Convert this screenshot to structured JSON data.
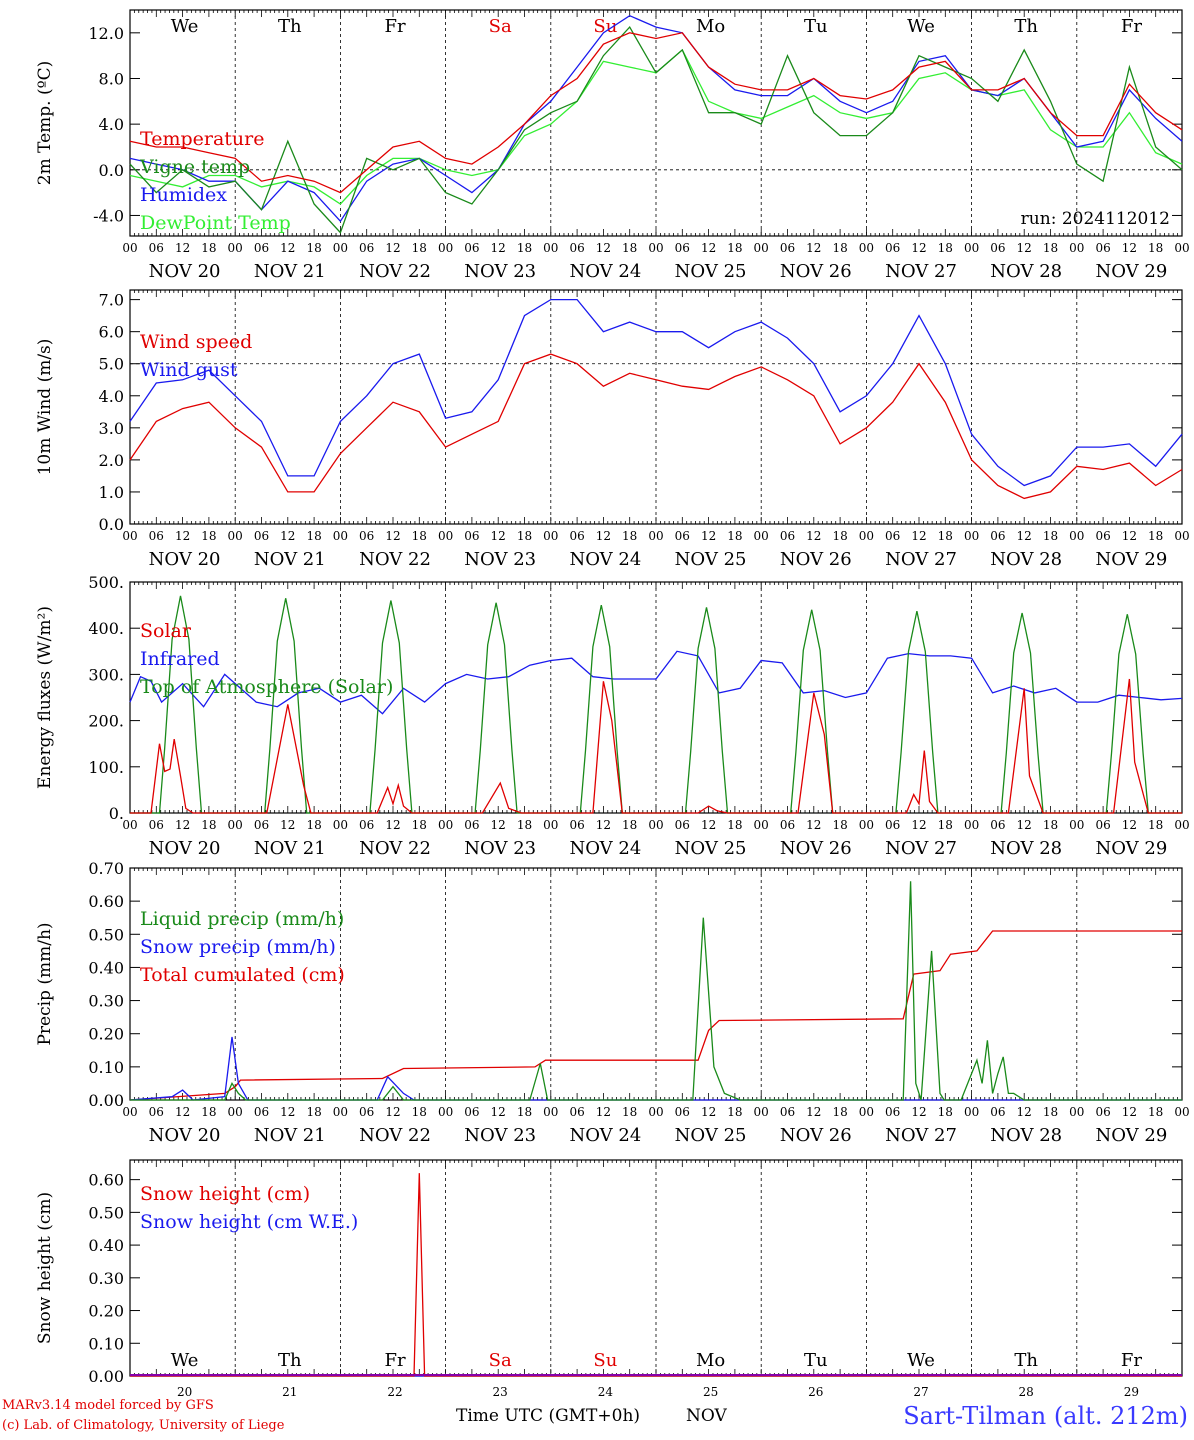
{
  "footer": {
    "model": "MARv3.14 model forced by GFS",
    "copyright": "(c) Lab. of Climatology, University of Liege",
    "time_axis": "Time UTC (GMT+0h)",
    "month": "NOV",
    "site": "Sart-Tilman (alt. 212m)"
  },
  "colors": {
    "red": "#e00000",
    "green": "#1a8a1a",
    "blue": "#1a1aee",
    "lightgreen": "#33ee33",
    "weekend": "#e00000",
    "purple": "#8800aa"
  },
  "x_axis": {
    "hour_ticks": [
      "00",
      "06",
      "12",
      "18"
    ],
    "end_tick": "00",
    "days": [
      "NOV 20",
      "NOV 21",
      "NOV 22",
      "NOV 23",
      "NOV 24",
      "NOV 25",
      "NOV 26",
      "NOV 27",
      "NOV 28",
      "NOV 29"
    ],
    "weekdays": [
      "We",
      "Th",
      "Fr",
      "Sa",
      "Su",
      "Mo",
      "Tu",
      "We",
      "Th",
      "Fr"
    ],
    "weekend_flags": [
      false,
      false,
      false,
      true,
      true,
      false,
      false,
      false,
      false,
      false
    ],
    "day_numbers": [
      "20",
      "21",
      "22",
      "23",
      "24",
      "25",
      "26",
      "27",
      "28",
      "29"
    ]
  },
  "chart_data": [
    {
      "type": "line",
      "ylabel": "2m Temp. (ºC)",
      "ylim": [
        -5.8,
        14.0
      ],
      "yticks": [
        -4.0,
        0.0,
        4.0,
        8.0,
        12.0
      ],
      "ytick_labels": [
        "-4.0",
        "0.0",
        "4.0",
        "8.0",
        "12.0"
      ],
      "ref_line": 0.0,
      "annotation": "run: 2024112012",
      "x_days": [
        0,
        0.25,
        0.5,
        0.75,
        1,
        1.25,
        1.5,
        1.75,
        2,
        2.25,
        2.5,
        2.75,
        3,
        3.25,
        3.5,
        3.75,
        4,
        4.25,
        4.5,
        4.75,
        5,
        5.25,
        5.5,
        5.75,
        6,
        6.25,
        6.5,
        6.75,
        7,
        7.25,
        7.5,
        7.75,
        8,
        8.25,
        8.5,
        8.75,
        9,
        9.25,
        9.5,
        9.75,
        10
      ],
      "series": [
        {
          "name": "Temperature",
          "color": "red",
          "values": [
            2.5,
            2.0,
            2.0,
            1.5,
            1.0,
            -1.0,
            -0.5,
            -1.0,
            -2.0,
            0.0,
            2.0,
            2.5,
            1.0,
            0.5,
            2.0,
            4.0,
            6.5,
            8.0,
            11.0,
            12.0,
            11.5,
            12.0,
            9.0,
            7.5,
            7.0,
            7.0,
            8.0,
            6.5,
            6.2,
            7.0,
            9.0,
            9.5,
            7.0,
            7.0,
            8.0,
            5.0,
            3.0,
            3.0,
            7.5,
            5.0,
            3.5
          ]
        },
        {
          "name": "Vigne temp",
          "color": "green",
          "values": [
            0.5,
            -2.0,
            0.0,
            -1.5,
            -1.0,
            -3.5,
            2.5,
            -3.0,
            -5.5,
            1.0,
            0.0,
            1.0,
            -2.0,
            -3.0,
            0.0,
            3.5,
            5.0,
            6.0,
            10.0,
            12.5,
            8.5,
            10.5,
            5.0,
            5.0,
            4.0,
            10.0,
            5.0,
            3.0,
            3.0,
            5.0,
            10.0,
            9.0,
            8.0,
            6.0,
            10.5,
            6.0,
            0.5,
            -1.0,
            9.0,
            2.0,
            0.0
          ]
        },
        {
          "name": "Humidex",
          "color": "blue",
          "values": [
            1.0,
            0.5,
            0.0,
            -1.0,
            -1.0,
            -3.5,
            -1.0,
            -2.0,
            -4.5,
            -1.0,
            0.5,
            1.0,
            -0.5,
            -2.0,
            0.0,
            4.0,
            6.0,
            9.0,
            12.0,
            13.5,
            12.5,
            12.0,
            9.0,
            7.0,
            6.5,
            6.5,
            8.0,
            6.0,
            5.0,
            6.0,
            9.5,
            10.0,
            7.0,
            6.5,
            8.0,
            5.0,
            2.0,
            2.5,
            7.0,
            4.5,
            2.5
          ]
        },
        {
          "name": "DewPoint Temp",
          "color": "lightgreen",
          "values": [
            -0.5,
            -1.0,
            -1.5,
            -0.5,
            -0.5,
            -1.5,
            -1.0,
            -1.5,
            -3.0,
            -0.5,
            1.0,
            1.0,
            0.0,
            -0.5,
            0.0,
            3.0,
            4.0,
            6.0,
            9.5,
            9.0,
            8.5,
            10.5,
            6.0,
            5.0,
            4.5,
            5.5,
            6.5,
            5.0,
            4.5,
            5.0,
            8.0,
            8.5,
            7.0,
            6.5,
            7.0,
            3.5,
            2.0,
            2.0,
            5.0,
            1.5,
            0.5
          ]
        }
      ]
    },
    {
      "type": "line",
      "ylabel": "10m Wind (m/s)",
      "ylim": [
        0.0,
        7.3
      ],
      "yticks": [
        0.0,
        1.0,
        2.0,
        3.0,
        4.0,
        5.0,
        6.0,
        7.0
      ],
      "ytick_labels": [
        "0.0",
        "1.0",
        "2.0",
        "3.0",
        "4.0",
        "5.0",
        "6.0",
        "7.0"
      ],
      "ref_line": 5.0,
      "x_days": [
        0,
        0.25,
        0.5,
        0.75,
        1,
        1.25,
        1.5,
        1.75,
        2,
        2.25,
        2.5,
        2.75,
        3,
        3.25,
        3.5,
        3.75,
        4,
        4.25,
        4.5,
        4.75,
        5,
        5.25,
        5.5,
        5.75,
        6,
        6.25,
        6.5,
        6.75,
        7,
        7.25,
        7.5,
        7.75,
        8,
        8.25,
        8.5,
        8.75,
        9,
        9.25,
        9.5,
        9.75,
        10
      ],
      "series": [
        {
          "name": "Wind speed",
          "color": "red",
          "values": [
            2.0,
            3.2,
            3.6,
            3.8,
            3.0,
            2.4,
            1.0,
            1.0,
            2.2,
            3.0,
            3.8,
            3.5,
            2.4,
            2.8,
            3.2,
            5.0,
            5.3,
            5.0,
            4.3,
            4.7,
            4.5,
            4.3,
            4.2,
            4.6,
            4.9,
            4.5,
            4.0,
            2.5,
            3.0,
            3.8,
            5.0,
            3.8,
            2.0,
            1.2,
            0.8,
            1.0,
            1.8,
            1.7,
            1.9,
            1.2,
            1.7
          ]
        },
        {
          "name": "Wind gust",
          "color": "blue",
          "values": [
            3.2,
            4.4,
            4.5,
            4.8,
            4.0,
            3.2,
            1.5,
            1.5,
            3.2,
            4.0,
            5.0,
            5.3,
            3.3,
            3.5,
            4.5,
            6.5,
            7.0,
            7.0,
            6.0,
            6.3,
            6.0,
            6.0,
            5.5,
            6.0,
            6.3,
            5.8,
            5.0,
            3.5,
            4.0,
            5.0,
            6.5,
            5.0,
            2.8,
            1.8,
            1.2,
            1.5,
            2.4,
            2.4,
            2.5,
            1.8,
            2.8
          ]
        }
      ]
    },
    {
      "type": "line",
      "ylabel": "Energy fluxes (W/m²)",
      "ylim": [
        0,
        500
      ],
      "yticks": [
        0,
        100,
        200,
        300,
        400,
        500
      ],
      "ytick_labels": [
        "0.",
        "100.",
        "200.",
        "300.",
        "400.",
        "500."
      ],
      "toa_peaks": [
        470,
        465,
        460,
        455,
        450,
        445,
        440,
        437,
        433,
        430
      ],
      "solar_days": [
        [
          0.2,
          0.28,
          0.33,
          0.38,
          0.42,
          0.48,
          0.53,
          0.6,
          0.7
        ],
        [
          1.3,
          1.5,
          1.65,
          1.72
        ],
        [
          2.35,
          2.45,
          2.5,
          2.55,
          2.6,
          2.68
        ],
        [
          3.35,
          3.52,
          3.6,
          3.72
        ],
        [
          4.4,
          4.5,
          4.58,
          4.68
        ],
        [
          5.4,
          5.5,
          5.58,
          5.68
        ],
        [
          6.35,
          6.5,
          6.6,
          6.68
        ],
        [
          7.38,
          7.45,
          7.5,
          7.55,
          7.6,
          7.68
        ],
        [
          8.35,
          8.5,
          8.55,
          8.68
        ],
        [
          9.35,
          9.5,
          9.55,
          9.68
        ]
      ],
      "solar_vals": [
        [
          0,
          150,
          90,
          95,
          160,
          80,
          10,
          0,
          0
        ],
        [
          0,
          235,
          60,
          0
        ],
        [
          0,
          55,
          20,
          60,
          15,
          0
        ],
        [
          0,
          65,
          10,
          0
        ],
        [
          0,
          285,
          200,
          0
        ],
        [
          0,
          15,
          5,
          0
        ],
        [
          0,
          260,
          170,
          0
        ],
        [
          0,
          40,
          20,
          135,
          25,
          0
        ],
        [
          0,
          270,
          80,
          0
        ],
        [
          0,
          290,
          110,
          0
        ]
      ],
      "series": [
        {
          "name": "Solar",
          "color": "red"
        },
        {
          "name": "Infrared",
          "color": "blue",
          "x_days": [
            0,
            0.1,
            0.2,
            0.3,
            0.5,
            0.7,
            0.9,
            1.0,
            1.2,
            1.4,
            1.6,
            1.8,
            2.0,
            2.2,
            2.4,
            2.6,
            2.8,
            3.0,
            3.2,
            3.4,
            3.6,
            3.8,
            4.0,
            4.2,
            4.4,
            4.6,
            4.8,
            5.0,
            5.2,
            5.4,
            5.6,
            5.8,
            6.0,
            6.2,
            6.4,
            6.6,
            6.8,
            7.0,
            7.2,
            7.4,
            7.6,
            7.8,
            8.0,
            8.2,
            8.4,
            8.6,
            8.8,
            9.0,
            9.2,
            9.4,
            9.6,
            9.8,
            10.0
          ],
          "values": [
            240,
            295,
            285,
            240,
            280,
            230,
            300,
            280,
            240,
            230,
            260,
            270,
            240,
            255,
            215,
            270,
            240,
            280,
            300,
            290,
            295,
            320,
            330,
            335,
            295,
            290,
            290,
            290,
            350,
            340,
            260,
            270,
            330,
            325,
            260,
            265,
            250,
            260,
            335,
            345,
            340,
            340,
            335,
            260,
            275,
            260,
            270,
            240,
            240,
            255,
            250,
            245,
            248
          ]
        },
        {
          "name": "Top of Atmosphere (Solar)",
          "color": "green"
        }
      ]
    },
    {
      "type": "line",
      "ylabel": "Precip (mm/h)",
      "ylim": [
        0.0,
        0.7
      ],
      "yticks": [
        0.0,
        0.1,
        0.2,
        0.3,
        0.4,
        0.5,
        0.6,
        0.7
      ],
      "ytick_labels": [
        "0.00",
        "0.10",
        "0.20",
        "0.30",
        "0.40",
        "0.50",
        "0.60",
        "0.70"
      ],
      "series": [
        {
          "name": "Liquid precip (mm/h)",
          "color": "green",
          "x_days": [
            0,
            0.9,
            0.97,
            1.03,
            1.1,
            2.4,
            2.5,
            2.6,
            3.8,
            3.9,
            3.97,
            4.5,
            5.35,
            5.45,
            5.55,
            5.65,
            5.8,
            7.35,
            7.42,
            7.47,
            7.52,
            7.62,
            7.7,
            7.74,
            7.8,
            7.9,
            8.05,
            8.1,
            8.15,
            8.2,
            8.25,
            8.3,
            8.35,
            8.4,
            8.5,
            10
          ],
          "values": [
            0,
            0,
            0.05,
            0.02,
            0,
            0,
            0.04,
            0,
            0,
            0.11,
            0,
            0,
            0,
            0.55,
            0.1,
            0.02,
            0,
            0,
            0.66,
            0.05,
            0,
            0.45,
            0.02,
            0,
            0,
            0,
            0.12,
            0.05,
            0.18,
            0.02,
            0.08,
            0.13,
            0.02,
            0.02,
            0,
            0
          ]
        },
        {
          "name": "Snow precip (mm/h)",
          "color": "blue",
          "x_days": [
            0,
            0.4,
            0.5,
            0.6,
            0.9,
            0.97,
            1.03,
            1.12,
            2.35,
            2.45,
            2.6,
            2.7,
            10
          ],
          "values": [
            0,
            0.01,
            0.03,
            0,
            0.01,
            0.19,
            0.05,
            0,
            0,
            0.07,
            0.02,
            0,
            0
          ]
        },
        {
          "name": "Total cumulated (cm)",
          "color": "red",
          "x_days": [
            0,
            0.9,
            1.0,
            1.05,
            2.4,
            2.6,
            3.85,
            3.95,
            5.4,
            5.5,
            5.6,
            7.35,
            7.45,
            7.7,
            7.8,
            8.05,
            8.2,
            10
          ],
          "values": [
            0,
            0.02,
            0.04,
            0.06,
            0.065,
            0.095,
            0.1,
            0.12,
            0.12,
            0.21,
            0.24,
            0.245,
            0.38,
            0.39,
            0.44,
            0.45,
            0.51,
            0.51
          ]
        }
      ]
    },
    {
      "type": "line",
      "ylabel": "Snow height (cm)",
      "ylim": [
        0.0,
        0.66
      ],
      "yticks": [
        0.0,
        0.1,
        0.2,
        0.3,
        0.4,
        0.5,
        0.6
      ],
      "ytick_labels": [
        "0.00",
        "0.10",
        "0.20",
        "0.30",
        "0.40",
        "0.50",
        "0.60"
      ],
      "series": [
        {
          "name": "Snow height (cm)",
          "color": "red",
          "x_days": [
            0,
            2.7,
            2.75,
            2.8,
            10
          ],
          "values": [
            0,
            0,
            0.62,
            0,
            0
          ]
        },
        {
          "name": "Snow height (cm W.E.)",
          "color": "blue",
          "x_days": [
            0,
            10
          ],
          "values": [
            0,
            0
          ]
        }
      ]
    }
  ]
}
